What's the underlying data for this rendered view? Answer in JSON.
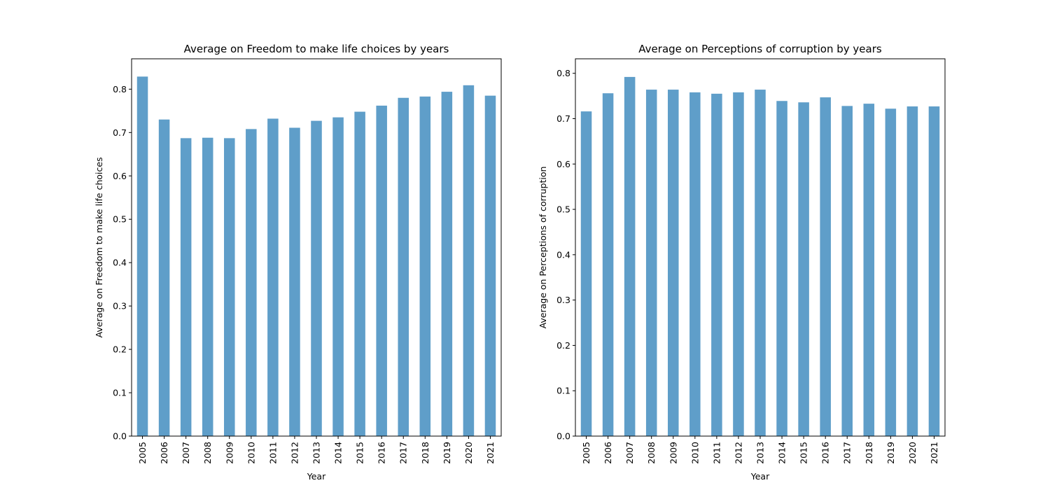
{
  "chart_data": [
    {
      "type": "bar",
      "title": "Average on Freedom to make life choices by years",
      "xlabel": "Year",
      "ylabel": "Average on Freedom to make life choices",
      "categories": [
        "2005",
        "2006",
        "2007",
        "2008",
        "2009",
        "2010",
        "2011",
        "2012",
        "2013",
        "2014",
        "2015",
        "2016",
        "2017",
        "2018",
        "2019",
        "2020",
        "2021"
      ],
      "values": [
        0.829,
        0.73,
        0.687,
        0.688,
        0.687,
        0.708,
        0.732,
        0.711,
        0.727,
        0.735,
        0.748,
        0.762,
        0.78,
        0.783,
        0.794,
        0.809,
        0.785
      ],
      "ylim": [
        0,
        0.87
      ],
      "yticks": [
        "0.0",
        "0.1",
        "0.2",
        "0.3",
        "0.4",
        "0.5",
        "0.6",
        "0.7",
        "0.8"
      ],
      "bar_color": "#5f9ec9",
      "grid": false,
      "legend": "none"
    },
    {
      "type": "bar",
      "title": "Average on Perceptions of corruption by years",
      "xlabel": "Year",
      "ylabel": "Average on Perceptions of corruption",
      "categories": [
        "2005",
        "2006",
        "2007",
        "2008",
        "2009",
        "2010",
        "2011",
        "2012",
        "2013",
        "2014",
        "2015",
        "2016",
        "2017",
        "2018",
        "2019",
        "2020",
        "2021"
      ],
      "values": [
        0.716,
        0.756,
        0.792,
        0.764,
        0.764,
        0.758,
        0.755,
        0.758,
        0.764,
        0.739,
        0.736,
        0.747,
        0.728,
        0.733,
        0.722,
        0.727,
        0.727
      ],
      "ylim": [
        0,
        0.832
      ],
      "yticks": [
        "0.0",
        "0.1",
        "0.2",
        "0.3",
        "0.4",
        "0.5",
        "0.6",
        "0.7",
        "0.8"
      ],
      "bar_color": "#5f9ec9",
      "grid": false,
      "legend": "none"
    }
  ]
}
